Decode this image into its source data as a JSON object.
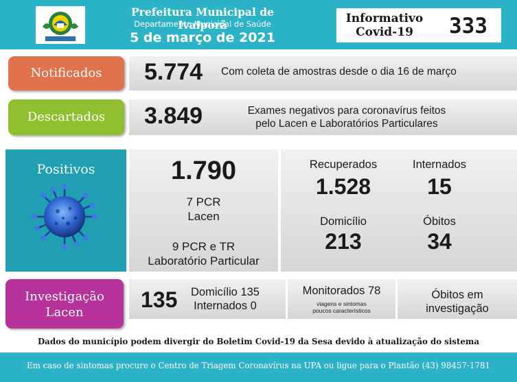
{
  "header": {
    "org_title": "Prefeitura Municipal de Ivaiporã",
    "org_subtitle": "Departamento Municipal de Saúde",
    "date": "5 de março de 2021",
    "bulletin_title_line1": "Informativo",
    "bulletin_title_line2": "Covid-19",
    "bulletin_number": "333",
    "logo_icon": "city-coat-of-arms-icon"
  },
  "notificados": {
    "label": "Notificados",
    "value": "5.774",
    "description": "Com coleta de amostras desde o dia 16 de março",
    "color": "#e0734e"
  },
  "descartados": {
    "label": "Descartados",
    "value": "3.849",
    "description_line1": "Exames negativos para coronavírus feitos",
    "description_line2": "pelo Lacen e Laboratórios Particulares",
    "color": "#8fbf2e"
  },
  "positivos": {
    "label": "Positivos",
    "icon": "virus-icon",
    "value": "1.790",
    "pcr_lacen_line1": "7 PCR",
    "pcr_lacen_line2": "Lacen",
    "pcr_lab_line1": "9 PCR e TR",
    "pcr_lab_line2": "Laboratório Particular",
    "recuperados_label": "Recuperados",
    "recuperados_value": "1.528",
    "internados_label": "Internados",
    "internados_value": "15",
    "domicilio_label": "Domicílio",
    "domicilio_value": "213",
    "obitos_label": "Óbitos",
    "obitos_value": "34",
    "color": "#1f9fb1"
  },
  "investigacao": {
    "label_line1": "Investigação",
    "label_line2": "Lacen",
    "value": "135",
    "domicilio": "Domicílio 135",
    "internados": "Internados 0",
    "monitorados": "Monitorados 78",
    "monitorados_note_line1": "viagens e sintomas",
    "monitorados_note_line2": "poucos característicos",
    "obitos_line1": "Óbitos em",
    "obitos_line2": "investigação",
    "color": "#b8329c"
  },
  "disclaimer": "Dados do município podem divergir do Boletim Covid-19 da Sesa devido à atualização do sistema",
  "footer": "Em caso de sintomas procure o Centro de Triagem Coronavírus na UPA ou ligue para o Plantão (43) 98457-1781",
  "colors": {
    "header_bg": "#2cb3c7",
    "panel_grey": "#dcdcdc"
  }
}
